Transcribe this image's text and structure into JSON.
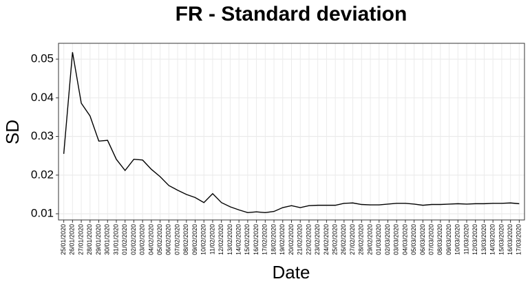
{
  "chart_data": {
    "type": "line",
    "title": "FR - Standard deviation",
    "x_label": "Date",
    "y_label": "SD",
    "categories": [
      "25/01/2020",
      "26/01/2020",
      "27/01/2020",
      "28/01/2020",
      "29/01/2020",
      "30/01/2020",
      "31/01/2020",
      "01/02/2020",
      "02/02/2020",
      "03/02/2020",
      "04/02/2020",
      "05/02/2020",
      "06/02/2020",
      "07/02/2020",
      "08/02/2020",
      "09/02/2020",
      "10/02/2020",
      "11/02/2020",
      "12/02/2020",
      "13/02/2020",
      "14/02/2020",
      "15/02/2020",
      "16/02/2020",
      "17/02/2020",
      "18/02/2020",
      "19/02/2020",
      "20/02/2020",
      "21/02/2020",
      "22/02/2020",
      "23/02/2020",
      "24/02/2020",
      "25/02/2020",
      "26/02/2020",
      "27/02/2020",
      "28/02/2020",
      "29/02/2020",
      "01/03/2020",
      "02/03/2020",
      "03/03/2020",
      "04/03/2020",
      "05/03/2020",
      "06/03/2020",
      "07/03/2020",
      "08/03/2020",
      "09/03/2020",
      "10/03/2020",
      "11/03/2020",
      "12/03/2020",
      "13/03/2020",
      "14/03/2020",
      "15/03/2020",
      "16/03/2020",
      "17/03/2020"
    ],
    "values": [
      0.0255,
      0.0518,
      0.0386,
      0.0353,
      0.0288,
      0.029,
      0.0241,
      0.0212,
      0.0241,
      0.0239,
      0.0215,
      0.0196,
      0.0173,
      0.0161,
      0.015,
      0.0142,
      0.0129,
      0.0152,
      0.0129,
      0.0118,
      0.011,
      0.0103,
      0.0105,
      0.0103,
      0.0106,
      0.0116,
      0.0121,
      0.0116,
      0.0121,
      0.0122,
      0.0122,
      0.0122,
      0.0127,
      0.0128,
      0.0124,
      0.0123,
      0.0123,
      0.0125,
      0.0127,
      0.0127,
      0.0125,
      0.0122,
      0.0124,
      0.0124,
      0.0125,
      0.0126,
      0.0125,
      0.0126,
      0.0126,
      0.0127,
      0.0127,
      0.0128,
      0.0126
    ],
    "color": "#000000",
    "ylim": [
      0.0084,
      0.0541
    ],
    "yticks": [
      0.01,
      0.02,
      0.03,
      0.04,
      0.05
    ],
    "grid": true
  }
}
